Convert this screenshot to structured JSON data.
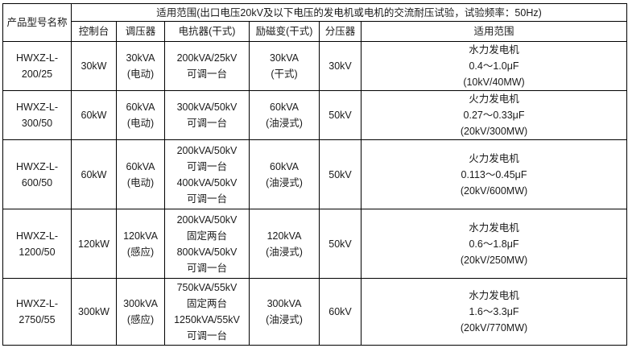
{
  "colors": {
    "border": "#000000",
    "text": "#1a1a1a",
    "background": "#ffffff"
  },
  "header": {
    "product_col": "产品型号名称",
    "scope_title": "适用范围(出口电压20kV及以下电压的发电机或电机的交流耐压试验，试验频率：50Hz)",
    "sub_columns": [
      "控制台",
      "调压器",
      "电抗器(干式)",
      "励磁变(干式)",
      "分压器",
      "适用范围"
    ]
  },
  "rows": [
    {
      "model": [
        "HWXZ-L-",
        "200/25"
      ],
      "console": [
        "30kW"
      ],
      "regulator": [
        "30kVA",
        "(电动)"
      ],
      "reactor": [
        "200kVA/25kV",
        "可调一台"
      ],
      "excitation": [
        "30kVA",
        "(干式)"
      ],
      "divider": [
        "30kV"
      ],
      "scope": [
        "水力发电机",
        "0.4～1.0μF",
        "(10kV/40MW)"
      ]
    },
    {
      "model": [
        "HWXZ-L-",
        "300/50"
      ],
      "console": [
        "60kW"
      ],
      "regulator": [
        "60kVA",
        "(电动)"
      ],
      "reactor": [
        "300kVA/50kV",
        "可调一台"
      ],
      "excitation": [
        "60kVA",
        "(油浸式)"
      ],
      "divider": [
        "50kV"
      ],
      "scope": [
        "火力发电机",
        "0.27～0.33μF",
        "(20kV/300MW)"
      ]
    },
    {
      "model": [
        "HWXZ-L-",
        "600/50"
      ],
      "console": [
        "60kW"
      ],
      "regulator": [
        "60kVA",
        "(电动)"
      ],
      "reactor": [
        "200kVA/50kV",
        "可调一台",
        "400kVA/50kV",
        "可调一台"
      ],
      "excitation": [
        "60kVA",
        "(油浸式)"
      ],
      "divider": [
        "50kV"
      ],
      "scope": [
        "火力发电机",
        "0.113～0.45μF",
        "(20kV/600MW)"
      ]
    },
    {
      "model": [
        "HWXZ-L-",
        "1200/50"
      ],
      "console": [
        "120kW"
      ],
      "regulator": [
        "120kVA",
        "(感应)"
      ],
      "reactor": [
        "200kVA/50kV",
        "固定两台",
        "800kVA/50kV",
        "可调一台"
      ],
      "excitation": [
        "120kVA",
        "(油浸式)"
      ],
      "divider": [
        "50kV"
      ],
      "scope": [
        "水力发电机",
        "0.6～1.8μF",
        "(20kV/250MW)"
      ]
    },
    {
      "model": [
        "HWXZ-L-",
        "2750/55"
      ],
      "console": [
        "300kW"
      ],
      "regulator": [
        "300kVA",
        "(感应)"
      ],
      "reactor": [
        "750kVA/55kV",
        "固定两台",
        "1250kVA/55kV",
        "可调一台"
      ],
      "excitation": [
        "300kVA",
        "(油浸式)"
      ],
      "divider": [
        "60kV"
      ],
      "scope": [
        "水力发电机",
        "1.6～3.3μF",
        "(20kV/770MW)"
      ]
    }
  ]
}
